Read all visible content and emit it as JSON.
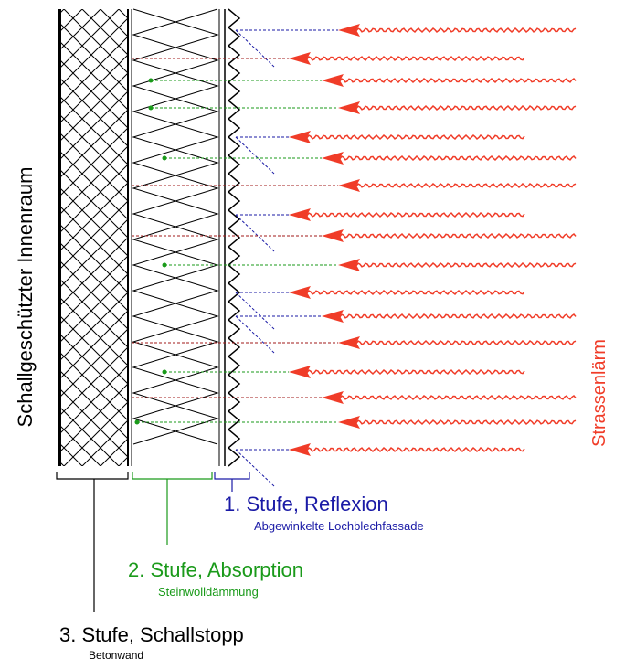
{
  "labels": {
    "interior": "Schallgeschützter Innenraum",
    "noise": "Strassenlärm"
  },
  "stages": [
    {
      "title": "1. Stufe, Reflexion",
      "subtitle": "Abgewinkelte Lochblechfassade"
    },
    {
      "title": "2. Stufe, Absorption",
      "subtitle": "Steinwolldämmung"
    },
    {
      "title": "3. Stufe, Schallstopp",
      "subtitle": "Betonwand"
    }
  ]
}
